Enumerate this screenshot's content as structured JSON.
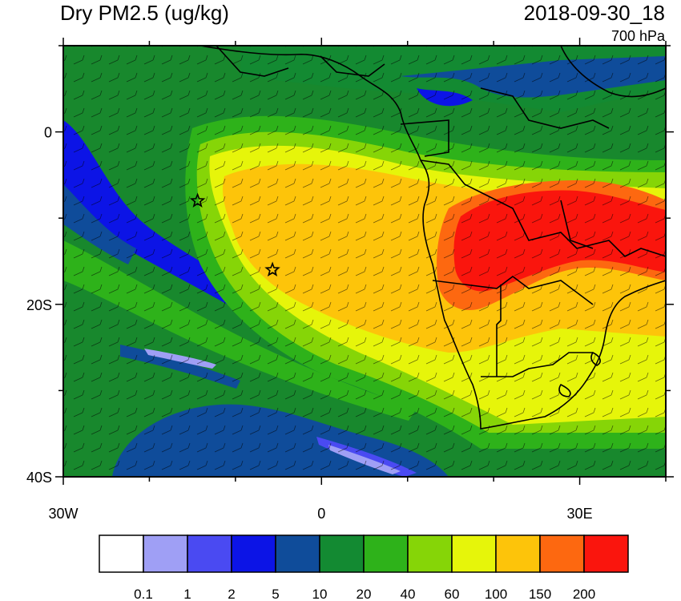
{
  "header": {
    "title": "Dry PM2.5 (ug/kg)",
    "datetime": "2018-09-30_18",
    "level": "700 hPa"
  },
  "map": {
    "lon_range": [
      -30,
      40
    ],
    "lat_range": [
      -40,
      10
    ],
    "x_ticks": [
      {
        "lon": -30,
        "label": "30W"
      },
      {
        "lon": 0,
        "label": "0"
      },
      {
        "lon": 30,
        "label": "30E"
      }
    ],
    "y_ticks": [
      {
        "lat": 0,
        "label": "0"
      },
      {
        "lat": -20,
        "label": "20S"
      },
      {
        "lat": -40,
        "label": "40S"
      }
    ],
    "markers": [
      {
        "name": "star-marker",
        "lon": -14.4,
        "lat": -8.0
      },
      {
        "name": "star-marker",
        "lon": -5.7,
        "lat": -16.0
      }
    ],
    "colors": {
      "ocean_background": "#18882d"
    }
  },
  "colorbar": {
    "levels": [
      "0.1",
      "1",
      "2",
      "5",
      "10",
      "20",
      "40",
      "60",
      "100",
      "150",
      "200"
    ],
    "colors": [
      "#ffffff",
      "#9f9ff5",
      "#4a4af2",
      "#0c14e6",
      "#0f4c9a",
      "#138a32",
      "#2eb21a",
      "#86d507",
      "#e6f50a",
      "#fdc40a",
      "#fd6810",
      "#fa150d"
    ]
  }
}
